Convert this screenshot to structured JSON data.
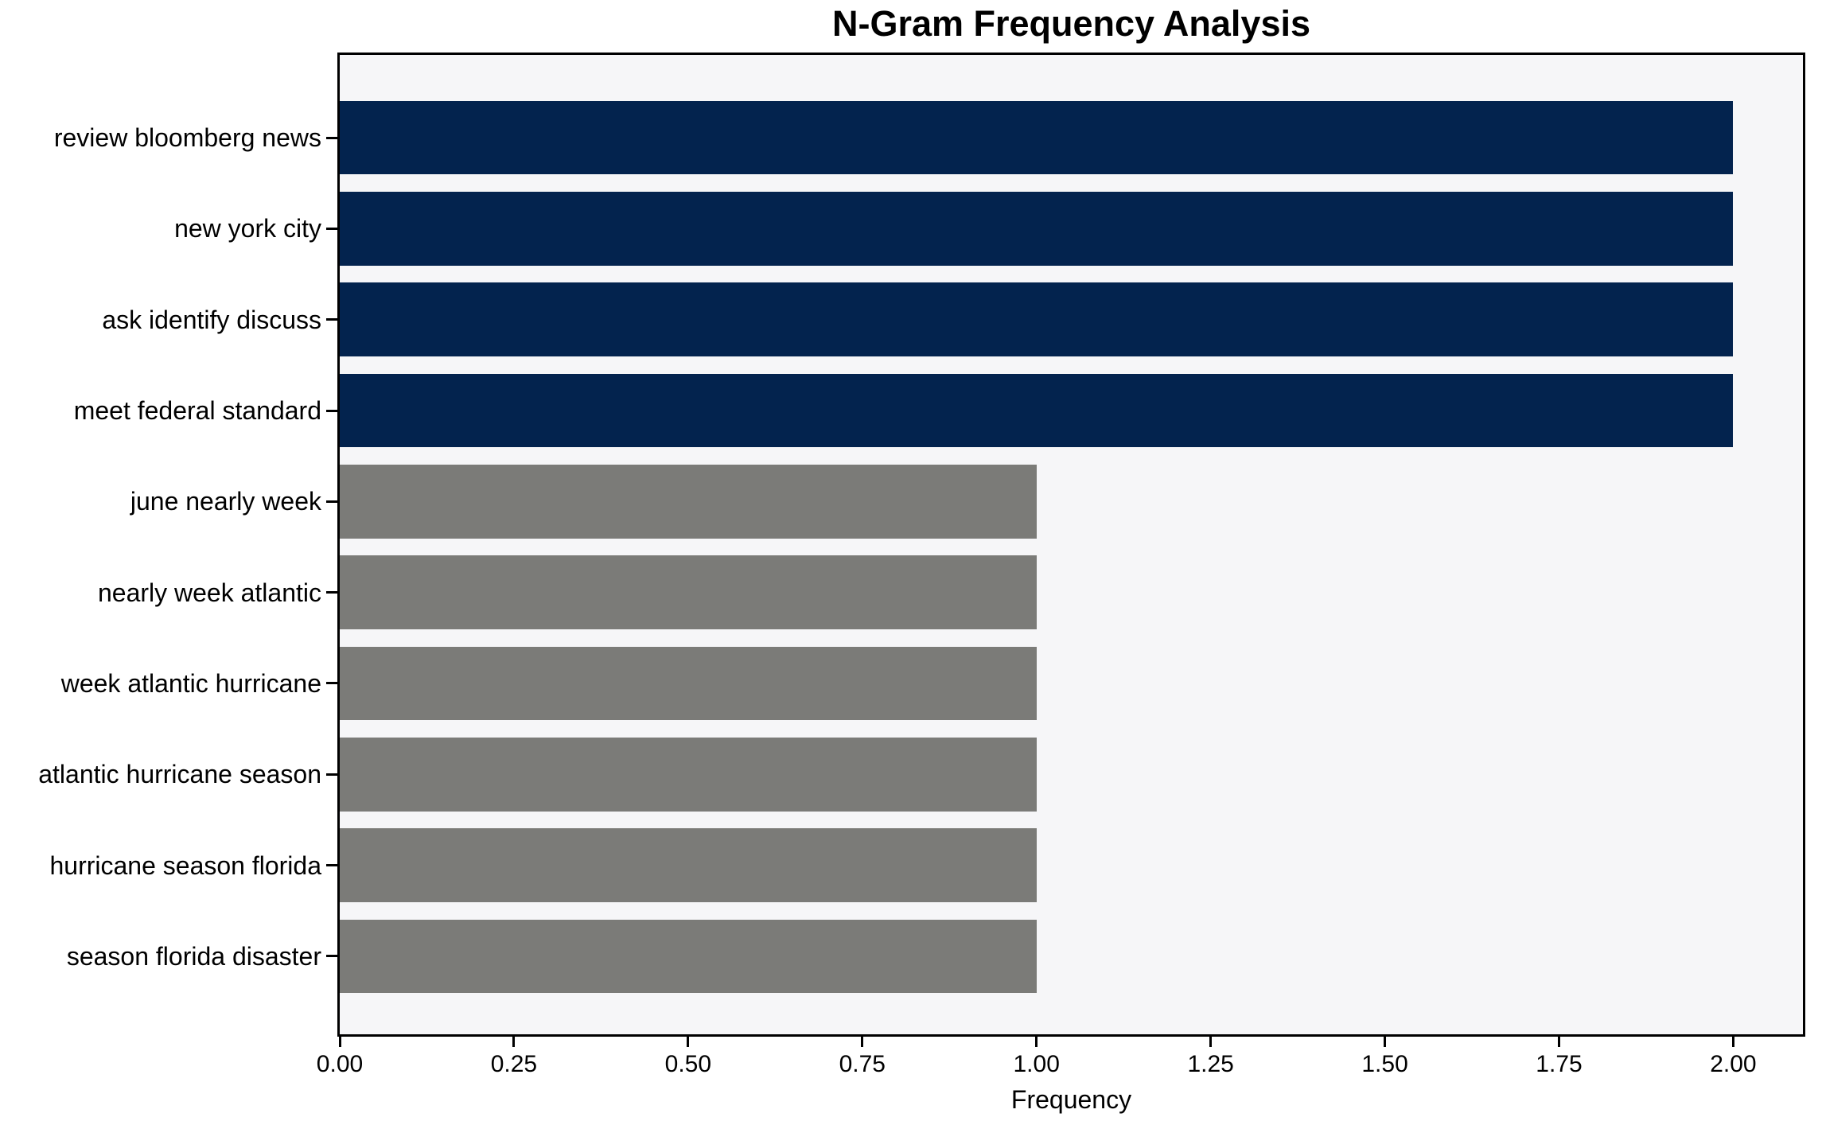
{
  "chart_data": {
    "type": "bar",
    "orientation": "horizontal",
    "title": "N-Gram Frequency Analysis",
    "xlabel": "Frequency",
    "ylabel": "",
    "categories": [
      "review bloomberg news",
      "new york city",
      "ask identify discuss",
      "meet federal standard",
      "june nearly week",
      "nearly week atlantic",
      "week atlantic hurricane",
      "atlantic hurricane season",
      "hurricane season florida",
      "season florida disaster"
    ],
    "values": [
      2,
      2,
      2,
      2,
      1,
      1,
      1,
      1,
      1,
      1
    ],
    "bar_colors": [
      "#03234E",
      "#03234E",
      "#03234E",
      "#03234E",
      "#7B7B78",
      "#7B7B78",
      "#7B7B78",
      "#7B7B78",
      "#7B7B78",
      "#7B7B78"
    ],
    "xlim": [
      0,
      2.1
    ],
    "x_ticks": [
      {
        "value": 0.0,
        "label": "0.00"
      },
      {
        "value": 0.25,
        "label": "0.25"
      },
      {
        "value": 0.5,
        "label": "0.50"
      },
      {
        "value": 0.75,
        "label": "0.75"
      },
      {
        "value": 1.0,
        "label": "1.00"
      },
      {
        "value": 1.25,
        "label": "1.25"
      },
      {
        "value": 1.5,
        "label": "1.50"
      },
      {
        "value": 1.75,
        "label": "1.75"
      },
      {
        "value": 2.0,
        "label": "2.00"
      }
    ],
    "grid": false,
    "legend": null,
    "colors": {
      "plot_background": "#F6F6F8",
      "figure_background": "#FFFFFF",
      "spine": "#000000",
      "text": "#000000",
      "highlight_bar": "#03234E",
      "default_bar": "#7B7B78"
    }
  }
}
